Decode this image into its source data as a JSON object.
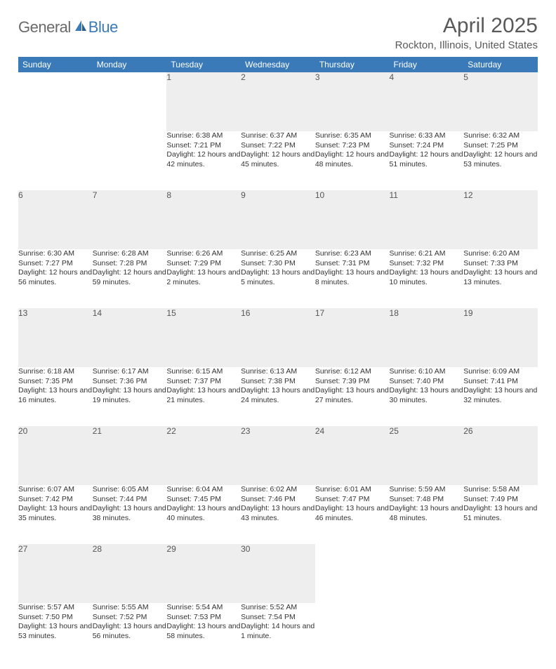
{
  "logo": {
    "general": "General",
    "blue": "Blue"
  },
  "title": "April 2025",
  "location": "Rockton, Illinois, United States",
  "colors": {
    "header_bg": "#3a7ab8",
    "header_text": "#ffffff",
    "daynum_bg": "#eeeeee",
    "row_divider": "#3a7ab8",
    "page_bg": "#ffffff",
    "text": "#333333",
    "title_text": "#595959",
    "logo_gray": "#6a6a6a",
    "logo_blue": "#3a7ab8"
  },
  "typography": {
    "title_fontsize": 30,
    "location_fontsize": 15,
    "dayheader_fontsize": 12,
    "daynum_fontsize": 12,
    "detail_fontsize": 10.5
  },
  "day_headers": [
    "Sunday",
    "Monday",
    "Tuesday",
    "Wednesday",
    "Thursday",
    "Friday",
    "Saturday"
  ],
  "weeks": [
    [
      null,
      null,
      {
        "n": "1",
        "sr": "Sunrise: 6:38 AM",
        "ss": "Sunset: 7:21 PM",
        "dl": "Daylight: 12 hours and 42 minutes."
      },
      {
        "n": "2",
        "sr": "Sunrise: 6:37 AM",
        "ss": "Sunset: 7:22 PM",
        "dl": "Daylight: 12 hours and 45 minutes."
      },
      {
        "n": "3",
        "sr": "Sunrise: 6:35 AM",
        "ss": "Sunset: 7:23 PM",
        "dl": "Daylight: 12 hours and 48 minutes."
      },
      {
        "n": "4",
        "sr": "Sunrise: 6:33 AM",
        "ss": "Sunset: 7:24 PM",
        "dl": "Daylight: 12 hours and 51 minutes."
      },
      {
        "n": "5",
        "sr": "Sunrise: 6:32 AM",
        "ss": "Sunset: 7:25 PM",
        "dl": "Daylight: 12 hours and 53 minutes."
      }
    ],
    [
      {
        "n": "6",
        "sr": "Sunrise: 6:30 AM",
        "ss": "Sunset: 7:27 PM",
        "dl": "Daylight: 12 hours and 56 minutes."
      },
      {
        "n": "7",
        "sr": "Sunrise: 6:28 AM",
        "ss": "Sunset: 7:28 PM",
        "dl": "Daylight: 12 hours and 59 minutes."
      },
      {
        "n": "8",
        "sr": "Sunrise: 6:26 AM",
        "ss": "Sunset: 7:29 PM",
        "dl": "Daylight: 13 hours and 2 minutes."
      },
      {
        "n": "9",
        "sr": "Sunrise: 6:25 AM",
        "ss": "Sunset: 7:30 PM",
        "dl": "Daylight: 13 hours and 5 minutes."
      },
      {
        "n": "10",
        "sr": "Sunrise: 6:23 AM",
        "ss": "Sunset: 7:31 PM",
        "dl": "Daylight: 13 hours and 8 minutes."
      },
      {
        "n": "11",
        "sr": "Sunrise: 6:21 AM",
        "ss": "Sunset: 7:32 PM",
        "dl": "Daylight: 13 hours and 10 minutes."
      },
      {
        "n": "12",
        "sr": "Sunrise: 6:20 AM",
        "ss": "Sunset: 7:33 PM",
        "dl": "Daylight: 13 hours and 13 minutes."
      }
    ],
    [
      {
        "n": "13",
        "sr": "Sunrise: 6:18 AM",
        "ss": "Sunset: 7:35 PM",
        "dl": "Daylight: 13 hours and 16 minutes."
      },
      {
        "n": "14",
        "sr": "Sunrise: 6:17 AM",
        "ss": "Sunset: 7:36 PM",
        "dl": "Daylight: 13 hours and 19 minutes."
      },
      {
        "n": "15",
        "sr": "Sunrise: 6:15 AM",
        "ss": "Sunset: 7:37 PM",
        "dl": "Daylight: 13 hours and 21 minutes."
      },
      {
        "n": "16",
        "sr": "Sunrise: 6:13 AM",
        "ss": "Sunset: 7:38 PM",
        "dl": "Daylight: 13 hours and 24 minutes."
      },
      {
        "n": "17",
        "sr": "Sunrise: 6:12 AM",
        "ss": "Sunset: 7:39 PM",
        "dl": "Daylight: 13 hours and 27 minutes."
      },
      {
        "n": "18",
        "sr": "Sunrise: 6:10 AM",
        "ss": "Sunset: 7:40 PM",
        "dl": "Daylight: 13 hours and 30 minutes."
      },
      {
        "n": "19",
        "sr": "Sunrise: 6:09 AM",
        "ss": "Sunset: 7:41 PM",
        "dl": "Daylight: 13 hours and 32 minutes."
      }
    ],
    [
      {
        "n": "20",
        "sr": "Sunrise: 6:07 AM",
        "ss": "Sunset: 7:42 PM",
        "dl": "Daylight: 13 hours and 35 minutes."
      },
      {
        "n": "21",
        "sr": "Sunrise: 6:05 AM",
        "ss": "Sunset: 7:44 PM",
        "dl": "Daylight: 13 hours and 38 minutes."
      },
      {
        "n": "22",
        "sr": "Sunrise: 6:04 AM",
        "ss": "Sunset: 7:45 PM",
        "dl": "Daylight: 13 hours and 40 minutes."
      },
      {
        "n": "23",
        "sr": "Sunrise: 6:02 AM",
        "ss": "Sunset: 7:46 PM",
        "dl": "Daylight: 13 hours and 43 minutes."
      },
      {
        "n": "24",
        "sr": "Sunrise: 6:01 AM",
        "ss": "Sunset: 7:47 PM",
        "dl": "Daylight: 13 hours and 46 minutes."
      },
      {
        "n": "25",
        "sr": "Sunrise: 5:59 AM",
        "ss": "Sunset: 7:48 PM",
        "dl": "Daylight: 13 hours and 48 minutes."
      },
      {
        "n": "26",
        "sr": "Sunrise: 5:58 AM",
        "ss": "Sunset: 7:49 PM",
        "dl": "Daylight: 13 hours and 51 minutes."
      }
    ],
    [
      {
        "n": "27",
        "sr": "Sunrise: 5:57 AM",
        "ss": "Sunset: 7:50 PM",
        "dl": "Daylight: 13 hours and 53 minutes."
      },
      {
        "n": "28",
        "sr": "Sunrise: 5:55 AM",
        "ss": "Sunset: 7:52 PM",
        "dl": "Daylight: 13 hours and 56 minutes."
      },
      {
        "n": "29",
        "sr": "Sunrise: 5:54 AM",
        "ss": "Sunset: 7:53 PM",
        "dl": "Daylight: 13 hours and 58 minutes."
      },
      {
        "n": "30",
        "sr": "Sunrise: 5:52 AM",
        "ss": "Sunset: 7:54 PM",
        "dl": "Daylight: 14 hours and 1 minute."
      },
      null,
      null,
      null
    ]
  ]
}
